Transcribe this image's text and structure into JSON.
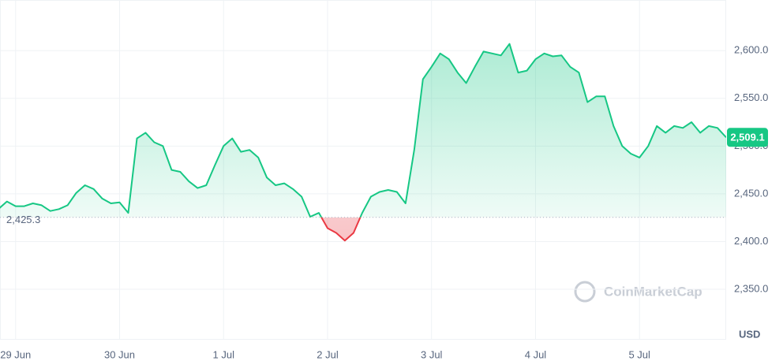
{
  "chart_data": {
    "type": "line",
    "currency": "USD",
    "watermark": "CoinMarketCap",
    "values": [
      2434,
      2442,
      2437,
      2437,
      2440,
      2438,
      2432,
      2434,
      2438,
      2451,
      2459,
      2455,
      2445,
      2440,
      2441,
      2430,
      2508,
      2514,
      2504,
      2500,
      2475,
      2473,
      2463,
      2456,
      2459,
      2480,
      2500,
      2508,
      2494,
      2496,
      2488,
      2467,
      2459,
      2461,
      2455,
      2447,
      2426,
      2430,
      2414,
      2409,
      2401,
      2409,
      2430,
      2447,
      2452,
      2454,
      2452,
      2440,
      2496,
      2570,
      2583,
      2597,
      2591,
      2577,
      2566,
      2583,
      2599,
      2597,
      2595,
      2607,
      2577,
      2579,
      2591,
      2597,
      2594,
      2595,
      2583,
      2577,
      2546,
      2552,
      2552,
      2521,
      2500,
      2492,
      2488,
      2500,
      2521,
      2514,
      2521,
      2519,
      2525,
      2514,
      2521,
      2519,
      2509.1
    ],
    "baseline": {
      "value": 2425.3,
      "label": "2,425.3"
    },
    "last_price": {
      "value": 2509.1,
      "label": "2,509.1"
    },
    "up_color": "#16c784",
    "down_color": "#ea3943",
    "xlim": [
      0.2,
      84
    ],
    "xticks": [
      {
        "value": 2,
        "label": "29 Jun"
      },
      {
        "value": 14,
        "label": "30 Jun"
      },
      {
        "value": 26,
        "label": "1 Jul"
      },
      {
        "value": 38,
        "label": "2 Jul"
      },
      {
        "value": 50,
        "label": "3 Jul"
      },
      {
        "value": 62,
        "label": "4 Jul"
      },
      {
        "value": 74,
        "label": "5 Jul"
      }
    ],
    "ylim": [
      2298,
      2653
    ],
    "yticks": [
      {
        "value": 2350,
        "label": "2,350.0"
      },
      {
        "value": 2400,
        "label": "2,400.0"
      },
      {
        "value": 2450,
        "label": "2,450.0"
      },
      {
        "value": 2500,
        "label": "2,500.0"
      },
      {
        "value": 2550,
        "label": "2,550.0"
      },
      {
        "value": 2600,
        "label": "2,600.0"
      }
    ],
    "grid": true
  }
}
